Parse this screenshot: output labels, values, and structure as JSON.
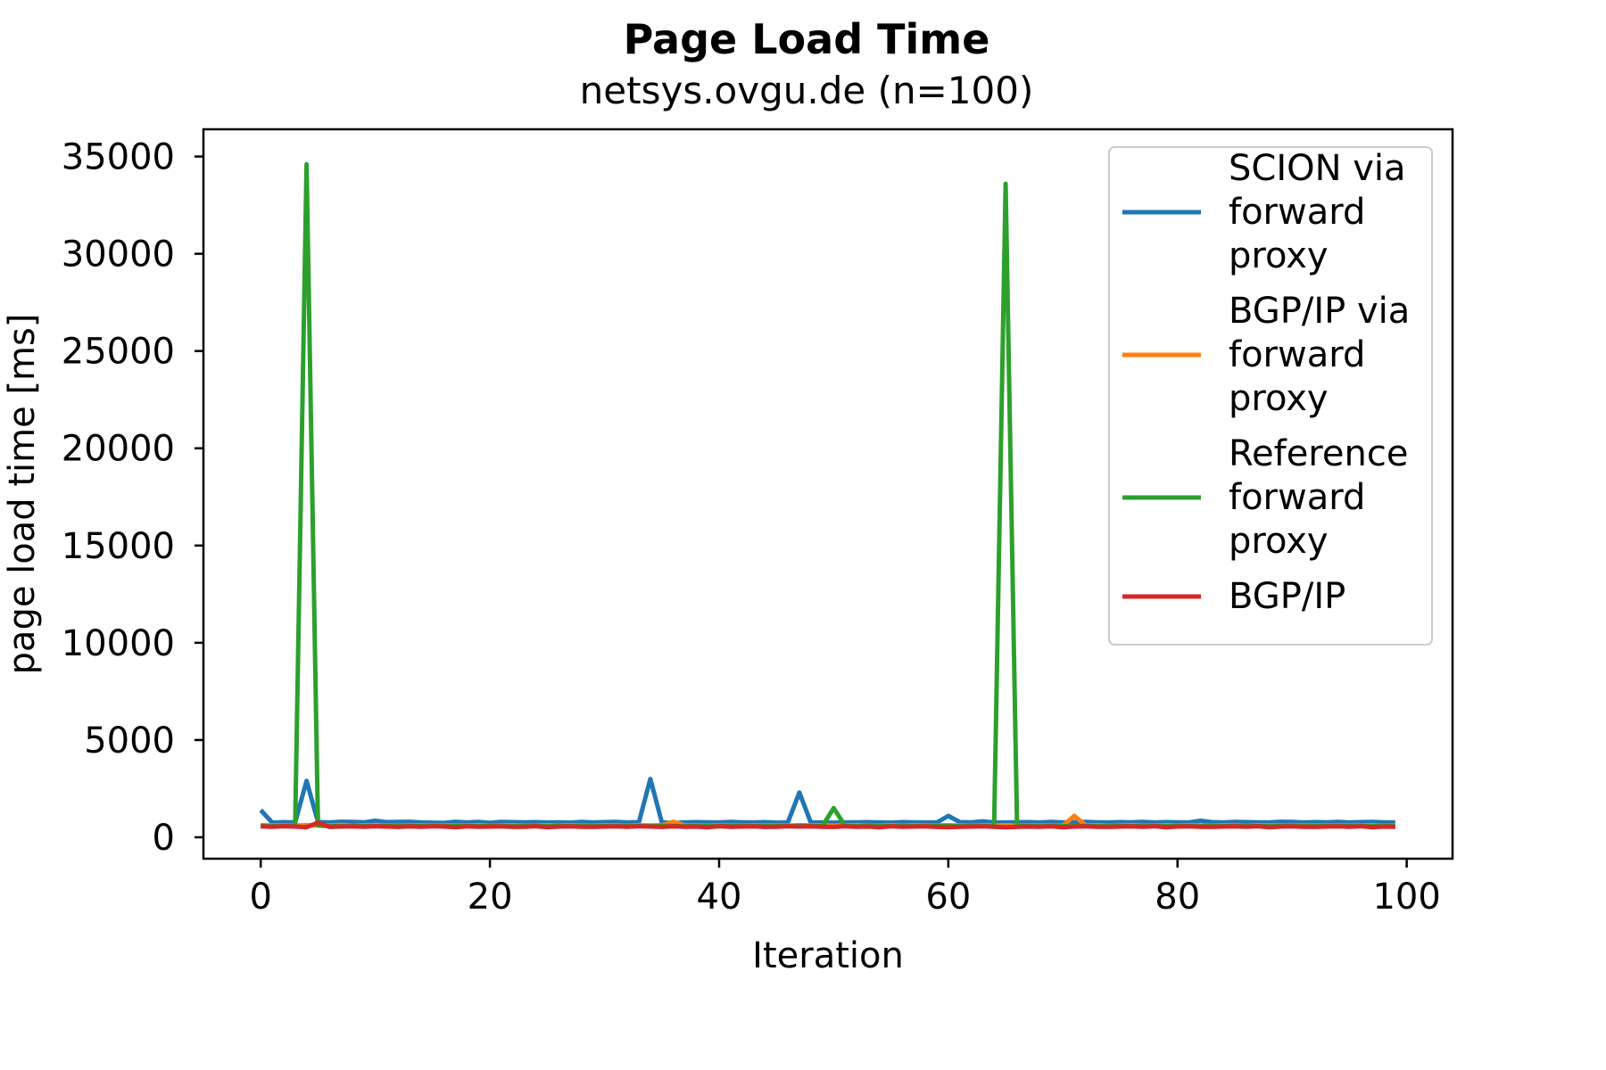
{
  "chart_data": {
    "type": "line",
    "title": "Page Load Time",
    "subtitle": "netsys.ovgu.de (n=100)",
    "xlabel": "Iteration",
    "ylabel": "page load time [ms]",
    "xlim": [
      -5,
      104
    ],
    "ylim": [
      -1100,
      36400
    ],
    "xticks": [
      0,
      20,
      40,
      60,
      80,
      100
    ],
    "yticks": [
      0,
      5000,
      10000,
      15000,
      20000,
      25000,
      30000,
      35000
    ],
    "grid": false,
    "legend_position": "top-right",
    "x": [
      0,
      1,
      2,
      3,
      4,
      5,
      6,
      7,
      8,
      9,
      10,
      11,
      12,
      13,
      14,
      15,
      16,
      17,
      18,
      19,
      20,
      21,
      22,
      23,
      24,
      25,
      26,
      27,
      28,
      29,
      30,
      31,
      32,
      33,
      34,
      35,
      36,
      37,
      38,
      39,
      40,
      41,
      42,
      43,
      44,
      45,
      46,
      47,
      48,
      49,
      50,
      51,
      52,
      53,
      54,
      55,
      56,
      57,
      58,
      59,
      60,
      61,
      62,
      63,
      64,
      65,
      66,
      67,
      68,
      69,
      70,
      71,
      72,
      73,
      74,
      75,
      76,
      77,
      78,
      79,
      80,
      81,
      82,
      83,
      84,
      85,
      86,
      87,
      88,
      89,
      90,
      91,
      92,
      93,
      94,
      95,
      96,
      97,
      98,
      99
    ],
    "series": [
      {
        "name": "SCION via forward proxy",
        "color": "#1f77b4",
        "values": [
          1400,
          750,
          780,
          760,
          2900,
          780,
          760,
          800,
          790,
          770,
          850,
          780,
          790,
          800,
          760,
          750,
          740,
          800,
          760,
          790,
          740,
          790,
          780,
          770,
          780,
          760,
          770,
          750,
          790,
          760,
          780,
          790,
          760,
          780,
          3000,
          760,
          740,
          760,
          780,
          770,
          760,
          790,
          770,
          760,
          780,
          750,
          760,
          2300,
          770,
          760,
          750,
          760,
          770,
          780,
          760,
          750,
          780,
          770,
          760,
          760,
          1100,
          780,
          770,
          820,
          760,
          760,
          770,
          780,
          760,
          790,
          760,
          780,
          790,
          770,
          760,
          780,
          770,
          790,
          760,
          780,
          770,
          760,
          850,
          780,
          760,
          790,
          780,
          770,
          760,
          800,
          790,
          760,
          780,
          770,
          790,
          760,
          780,
          790,
          770,
          760
        ]
      },
      {
        "name": "BGP/IP via forward proxy",
        "color": "#ff7f0e",
        "values": [
          620,
          610,
          620,
          600,
          620,
          620,
          610,
          630,
          600,
          620,
          610,
          620,
          600,
          610,
          620,
          610,
          600,
          620,
          610,
          620,
          600,
          610,
          620,
          610,
          600,
          620,
          610,
          620,
          600,
          610,
          620,
          610,
          600,
          620,
          610,
          620,
          800,
          610,
          620,
          600,
          610,
          620,
          600,
          610,
          620,
          610,
          600,
          620,
          610,
          620,
          600,
          610,
          620,
          610,
          600,
          620,
          610,
          620,
          600,
          610,
          620,
          610,
          600,
          620,
          610,
          620,
          600,
          610,
          620,
          610,
          600,
          1100,
          610,
          620,
          600,
          610,
          620,
          610,
          600,
          620,
          610,
          620,
          600,
          610,
          620,
          610,
          600,
          620,
          610,
          620,
          600,
          610,
          620,
          610,
          600,
          620,
          610,
          620,
          600,
          610
        ]
      },
      {
        "name": "Reference forward proxy",
        "color": "#2ca02c",
        "values": [
          580,
          570,
          590,
          580,
          34600,
          600,
          580,
          570,
          590,
          580,
          570,
          590,
          580,
          570,
          590,
          580,
          570,
          590,
          580,
          570,
          590,
          580,
          570,
          590,
          580,
          570,
          590,
          580,
          570,
          590,
          580,
          570,
          590,
          580,
          570,
          590,
          580,
          570,
          590,
          580,
          570,
          590,
          580,
          570,
          590,
          580,
          570,
          590,
          580,
          570,
          1500,
          580,
          570,
          590,
          580,
          570,
          590,
          580,
          570,
          590,
          580,
          570,
          590,
          580,
          570,
          33600,
          580,
          570,
          590,
          580,
          570,
          590,
          580,
          570,
          590,
          580,
          570,
          590,
          580,
          570,
          590,
          580,
          570,
          590,
          580,
          570,
          590,
          580,
          570,
          590,
          580,
          570,
          590,
          580,
          570,
          590,
          580,
          570,
          590,
          580
        ]
      },
      {
        "name": "BGP/IP",
        "color": "#d62728",
        "values": [
          560,
          540,
          570,
          550,
          520,
          750,
          530,
          550,
          560,
          540,
          570,
          550,
          530,
          560,
          540,
          570,
          550,
          520,
          560,
          540,
          550,
          560,
          530,
          540,
          570,
          520,
          550,
          560,
          540,
          530,
          550,
          560,
          540,
          570,
          550,
          530,
          560,
          540,
          550,
          520,
          570,
          540,
          550,
          560,
          530,
          540,
          570,
          550,
          560,
          540,
          530,
          560,
          540,
          550,
          520,
          570,
          540,
          550,
          560,
          530,
          520,
          540,
          550,
          560,
          540,
          520,
          530,
          550,
          540,
          560,
          520,
          550,
          560,
          540,
          530,
          550,
          560,
          540,
          570,
          520,
          550,
          560,
          540,
          530,
          550,
          560,
          540,
          570,
          520,
          550,
          560,
          540,
          530,
          550,
          560,
          540,
          570,
          520,
          550,
          540
        ]
      }
    ]
  }
}
